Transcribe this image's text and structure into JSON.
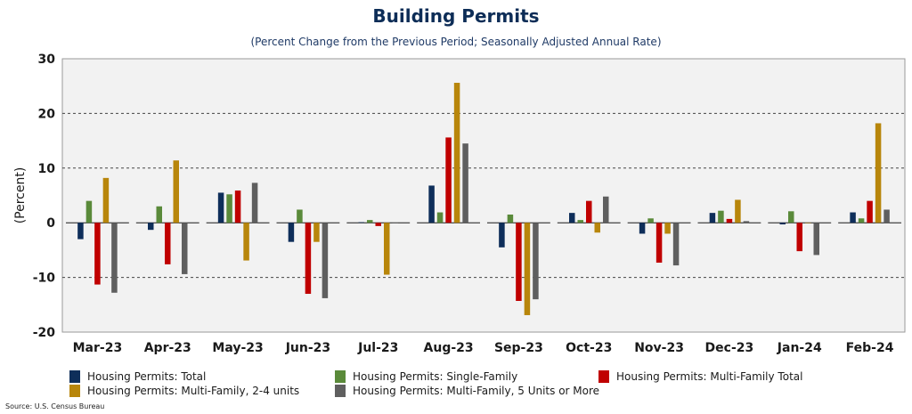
{
  "chart_data": {
    "type": "bar",
    "title": "Building Permits",
    "subtitle": "(Percent Change from the Previous Period; Seasonally Adjusted Annual Rate)",
    "ylabel": "(Percent)",
    "xlabel": "",
    "ylim": [
      -20,
      30
    ],
    "yticks": [
      -20,
      -10,
      0,
      10,
      20,
      30
    ],
    "grid": true,
    "legend_placement": "bottom",
    "categories": [
      "Mar-23",
      "Apr-23",
      "May-23",
      "Jun-23",
      "Jul-23",
      "Aug-23",
      "Sep-23",
      "Oct-23",
      "Nov-23",
      "Dec-23",
      "Jan-24",
      "Feb-24"
    ],
    "series": [
      {
        "name": "Housing Permits: Total",
        "color": "#0e2e5a",
        "values": [
          -3.0,
          -1.3,
          5.5,
          -3.5,
          0.1,
          6.8,
          -4.5,
          1.8,
          -2.0,
          1.8,
          -0.3,
          1.9
        ]
      },
      {
        "name": "Housing Permits: Single-Family",
        "color": "#5a8a3a",
        "values": [
          4.0,
          3.0,
          5.2,
          2.4,
          0.5,
          1.9,
          1.5,
          0.5,
          0.8,
          2.2,
          2.1,
          0.8
        ]
      },
      {
        "name": "Housing Permits: Multi-Family Total",
        "color": "#c00000",
        "values": [
          -11.3,
          -7.6,
          5.9,
          -13.0,
          -0.6,
          15.6,
          -14.3,
          4.0,
          -7.3,
          0.7,
          -5.2,
          4.0
        ]
      },
      {
        "name": "Housing Permits: Multi-Family, 2-4 units",
        "color": "#b8860b",
        "values": [
          8.2,
          11.4,
          -6.9,
          -3.5,
          -9.5,
          25.6,
          -16.9,
          -1.8,
          -2.0,
          4.2,
          0.0,
          18.2
        ]
      },
      {
        "name": "Housing Permits: Multi-Family, 5 Units or More",
        "color": "#5f5f5f",
        "values": [
          -12.8,
          -9.4,
          7.3,
          -13.8,
          0.0,
          14.5,
          -14.0,
          4.8,
          -7.8,
          0.3,
          -5.9,
          2.4
        ]
      }
    ]
  },
  "source": "Source: U.S. Census Bureau"
}
